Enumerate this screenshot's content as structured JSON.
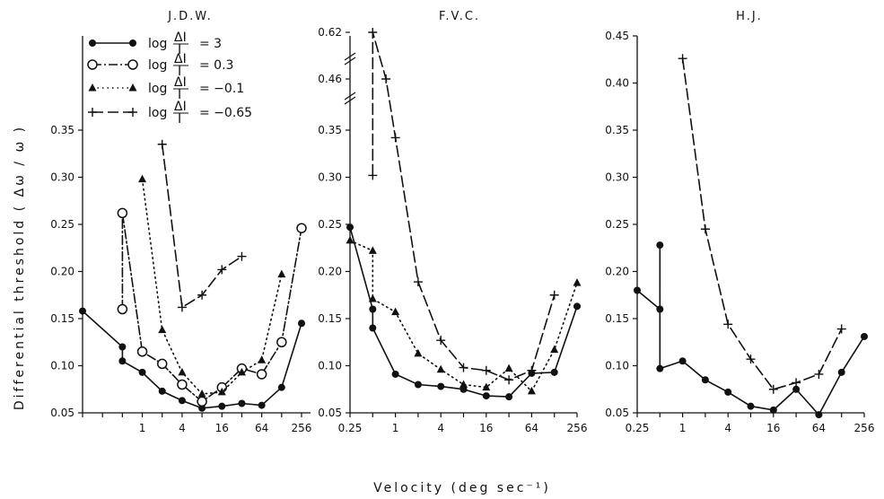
{
  "chart_data": [
    {
      "type": "line",
      "title": "J.D.W.",
      "xscale": "log2",
      "xlim": [
        0.125,
        350
      ],
      "ylim": [
        0.05,
        0.45
      ],
      "xticks": [
        1,
        4,
        16,
        64,
        256
      ],
      "yticks": [
        0.05,
        0.1,
        0.15,
        0.2,
        0.25,
        0.3,
        0.35
      ],
      "series": [
        {
          "key": "s3",
          "points": [
            [
              0.125,
              0.158
            ],
            [
              0.5,
              0.12
            ],
            [
              0.5,
              0.105
            ],
            [
              1,
              0.093
            ],
            [
              2,
              0.073
            ],
            [
              4,
              0.063
            ],
            [
              8,
              0.055
            ],
            [
              16,
              0.057
            ],
            [
              32,
              0.06
            ],
            [
              64,
              0.058
            ],
            [
              128,
              0.077
            ],
            [
              256,
              0.145
            ]
          ]
        },
        {
          "key": "s03",
          "points": [
            [
              0.5,
              0.16
            ],
            [
              0.5,
              0.262
            ],
            [
              1,
              0.115
            ],
            [
              2,
              0.102
            ],
            [
              4,
              0.08
            ],
            [
              8,
              0.062
            ],
            [
              16,
              0.077
            ],
            [
              32,
              0.097
            ],
            [
              64,
              0.091
            ],
            [
              128,
              0.125
            ],
            [
              256,
              0.246
            ]
          ]
        },
        {
          "key": "sm01",
          "points": [
            [
              1,
              0.298
            ],
            [
              2,
              0.138
            ],
            [
              4,
              0.093
            ],
            [
              8,
              0.07
            ],
            [
              16,
              0.072
            ],
            [
              32,
              0.093
            ],
            [
              64,
              0.106
            ],
            [
              128,
              0.197
            ]
          ]
        },
        {
          "key": "sm065",
          "points": [
            [
              2,
              0.335
            ],
            [
              4,
              0.162
            ],
            [
              8,
              0.175
            ],
            [
              16,
              0.202
            ],
            [
              32,
              0.216
            ]
          ]
        }
      ]
    },
    {
      "type": "line",
      "title": "F.V.C.",
      "xscale": "log2",
      "xlim": [
        0.25,
        256
      ],
      "ylim": [
        0.05,
        0.45
      ],
      "xticks": [
        0.25,
        1,
        4,
        16,
        64,
        256
      ],
      "yticks": [
        0.05,
        0.1,
        0.15,
        0.2,
        0.25,
        0.3,
        0.35
      ],
      "broken_yticks": [
        "0.46",
        "0.62"
      ],
      "series": [
        {
          "key": "s3",
          "points": [
            [
              0.25,
              0.247
            ],
            [
              0.5,
              0.16
            ],
            [
              0.5,
              0.14
            ],
            [
              1,
              0.091
            ],
            [
              2,
              0.08
            ],
            [
              4,
              0.078
            ],
            [
              8,
              0.075
            ],
            [
              16,
              0.068
            ],
            [
              32,
              0.067
            ],
            [
              64,
              0.092
            ],
            [
              128,
              0.093
            ],
            [
              256,
              0.163
            ]
          ]
        },
        {
          "key": "sm01",
          "points": [
            [
              0.25,
              0.233
            ],
            [
              0.5,
              0.222
            ],
            [
              0.5,
              0.171
            ],
            [
              1,
              0.157
            ],
            [
              2,
              0.113
            ],
            [
              4,
              0.096
            ],
            [
              8,
              0.08
            ],
            [
              16,
              0.077
            ],
            [
              32,
              0.097
            ],
            [
              64,
              0.073
            ],
            [
              128,
              0.117
            ],
            [
              256,
              0.188
            ]
          ]
        },
        {
          "key": "sm065",
          "points": [
            [
              0.5,
              0.302
            ],
            [
              0.5,
              0.62
            ],
            [
              0.75,
              0.46
            ],
            [
              1,
              0.342
            ],
            [
              2,
              0.189
            ],
            [
              4,
              0.127
            ],
            [
              8,
              0.098
            ],
            [
              16,
              0.095
            ],
            [
              32,
              0.085
            ],
            [
              64,
              0.095
            ],
            [
              128,
              0.175
            ]
          ]
        }
      ]
    },
    {
      "type": "line",
      "title": "H.J.",
      "xscale": "log2",
      "xlim": [
        0.25,
        256
      ],
      "ylim": [
        0.05,
        0.45
      ],
      "xticks": [
        0.25,
        1,
        4,
        16,
        64,
        256
      ],
      "yticks": [
        0.05,
        0.1,
        0.15,
        0.2,
        0.25,
        0.3,
        0.35,
        0.4,
        0.45
      ],
      "series": [
        {
          "key": "s3",
          "points": [
            [
              0.25,
              0.18
            ],
            [
              0.5,
              0.16
            ],
            [
              0.5,
              0.228
            ],
            [
              0.5,
              0.097
            ],
            [
              1,
              0.105
            ],
            [
              2,
              0.085
            ],
            [
              4,
              0.072
            ],
            [
              8,
              0.057
            ],
            [
              16,
              0.053
            ],
            [
              32,
              0.075
            ],
            [
              64,
              0.048
            ],
            [
              128,
              0.093
            ],
            [
              256,
              0.131
            ]
          ]
        },
        {
          "key": "sm065",
          "points": [
            [
              1,
              0.426
            ],
            [
              2,
              0.245
            ],
            [
              4,
              0.144
            ],
            [
              8,
              0.107
            ],
            [
              16,
              0.075
            ],
            [
              32,
              0.082
            ],
            [
              64,
              0.091
            ],
            [
              128,
              0.139
            ]
          ]
        }
      ]
    }
  ],
  "y_axis_title": "Differential   threshold   ( Δω / ω )",
  "x_axis_title": "Velocity  (deg sec⁻¹)",
  "legend": [
    {
      "key": "s3",
      "prefix": "log",
      "fraction_num": "ΔI",
      "fraction_den": "I",
      "value": "= 3"
    },
    {
      "key": "s03",
      "prefix": "log",
      "fraction_num": "ΔI",
      "fraction_den": "I",
      "value": "= 0.3"
    },
    {
      "key": "sm01",
      "prefix": "log",
      "fraction_num": "ΔI",
      "fraction_den": "I",
      "value": "= −0.1"
    },
    {
      "key": "sm065",
      "prefix": "log",
      "fraction_num": "ΔI",
      "fraction_den": "I",
      "value": "= −0.65"
    }
  ],
  "styles": {
    "s3": {
      "marker": "filled-circle",
      "dash": "",
      "color": "#111111"
    },
    "s03": {
      "marker": "open-circle",
      "dash": "10 3 2 3",
      "color": "#111111"
    },
    "sm01": {
      "marker": "triangle",
      "dash": "1.5 4",
      "color": "#111111"
    },
    "sm065": {
      "marker": "plus",
      "dash": "12 5",
      "color": "#111111"
    }
  }
}
